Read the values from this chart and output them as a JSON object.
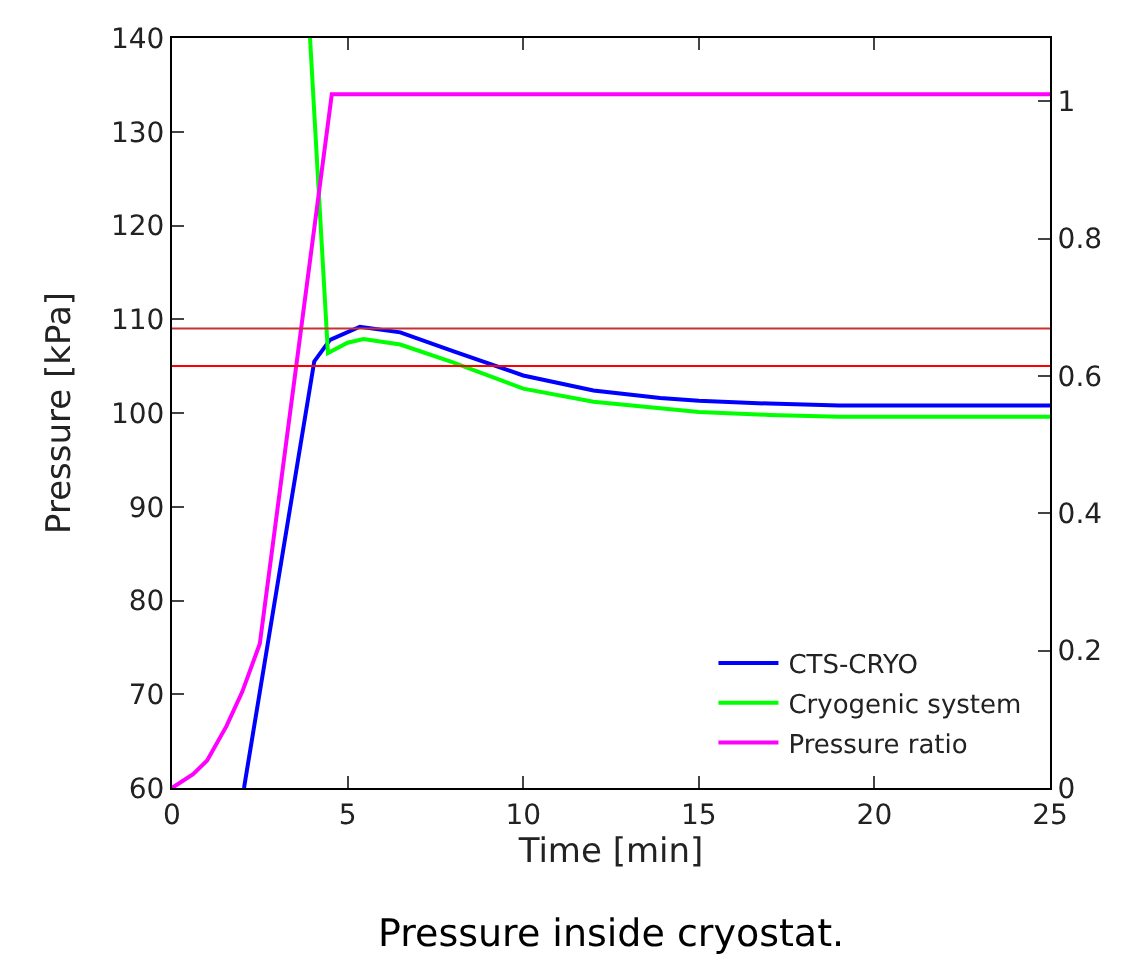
{
  "chart_data": {
    "type": "line",
    "title": "Pressure inside cryostat.",
    "xlabel": "Time [min]",
    "ylabel": "Pressure [kPa]",
    "xlim": [
      0,
      25
    ],
    "xticks": [
      0,
      5,
      10,
      15,
      20,
      25
    ],
    "ylim": [
      60,
      140
    ],
    "yticks": [
      60,
      70,
      80,
      90,
      100,
      110,
      120,
      130,
      140
    ],
    "y2lim": [
      0,
      1.092
    ],
    "y2ticks": [
      0,
      0.2,
      0.4,
      0.6,
      0.8,
      1
    ],
    "legend": "bottom right",
    "line_style": "solid",
    "marker": "none",
    "series": [
      {
        "name": "CTS-CRYO",
        "color": "#0000ff",
        "x": [
          2.05,
          4.05,
          4.5,
          5.35,
          6.5,
          8,
          10,
          12,
          13.9,
          15,
          17,
          19,
          22,
          25
        ],
        "values": [
          60,
          105.5,
          107.8,
          109.2,
          108.6,
          106.6,
          104.0,
          102.4,
          101.6,
          101.3,
          101.0,
          100.8,
          100.8,
          100.8
        ]
      },
      {
        "name": "Cryogenic system",
        "color": "#00ff00",
        "x": [
          3.93,
          4.44,
          5.0,
          5.45,
          6.5,
          8,
          10,
          12,
          13.9,
          15,
          17,
          19,
          22,
          25
        ],
        "values": [
          140,
          106.4,
          107.5,
          107.9,
          107.3,
          105.4,
          102.6,
          101.2,
          100.5,
          100.1,
          99.8,
          99.6,
          99.6,
          99.6
        ]
      },
      {
        "name": "Pressure ratio",
        "color": "#ff00ff",
        "axis": "y2",
        "x": [
          0,
          0.6,
          1.0,
          1.55,
          2.0,
          2.5,
          3.5,
          4.55,
          10,
          15,
          20,
          25
        ],
        "values": [
          0,
          0.02,
          0.04,
          0.09,
          0.14,
          0.21,
          0.6,
          1.01,
          1.01,
          1.01,
          1.01,
          1.01
        ]
      }
    ],
    "ref_lines": [
      {
        "axis": "y",
        "value": 109,
        "color": "#c83232"
      },
      {
        "axis": "y",
        "value": 105,
        "color": "#ff0000"
      }
    ]
  }
}
